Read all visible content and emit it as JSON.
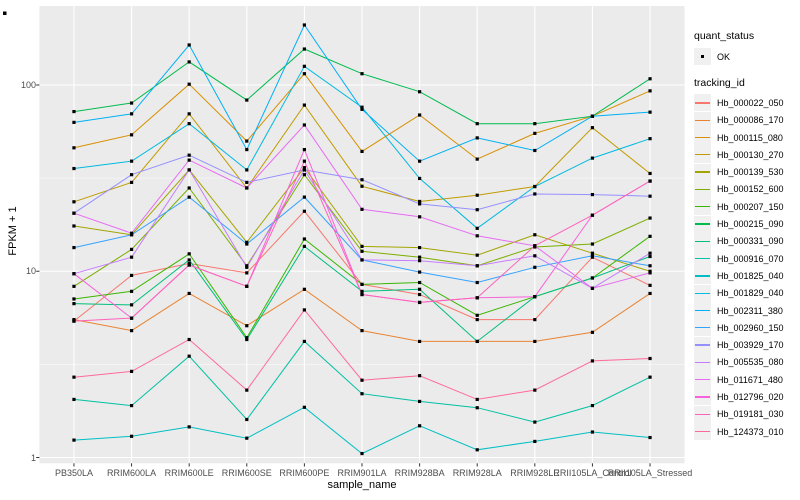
{
  "legend": {
    "quant_status_title": "quant_status",
    "ok_label": "OK",
    "tracking_id_title": "tracking_id"
  },
  "colors": {
    "panel_bg": "#EBEBEB",
    "grid_major": "#FFFFFF",
    "grid_minor": "#F7F7F7",
    "axis_text": "#4D4D4D",
    "tick_mark": "#333333",
    "point": "#000000",
    "legend_key_bg": "#F0F0F0"
  },
  "chart_data": {
    "type": "line",
    "title": "",
    "xlabel": "sample_name",
    "ylabel": "FPKM + 1",
    "yscale": "log10",
    "ylim": [
      0.93,
      265
    ],
    "y_tick_values": [
      1,
      10,
      100
    ],
    "y_tick_labels": [
      "1",
      "10",
      "100"
    ],
    "y_minor_gridlines": [
      3.162,
      31.62
    ],
    "grid": "on",
    "legend_position": "right",
    "point_marker": "black-square",
    "x_categories": [
      "PB350LA",
      "RRIM600LA",
      "RRIM600LE",
      "RRIM600SE",
      "RRIM600PE",
      "RRIM901LA",
      "RRIM928BA",
      "RRIM928LA",
      "RRIM928LE",
      "RRII105LA_Control",
      "RRII105LA_Stressed"
    ],
    "quant_status": "OK",
    "series": [
      {
        "name": "Hb_000022_050",
        "color": "#F8766D",
        "values": [
          5.4,
          9.5,
          11.0,
          9.8,
          21.0,
          8.5,
          7.5,
          5.5,
          5.5,
          11.9,
          8.4
        ]
      },
      {
        "name": "Hb_000086_170",
        "color": "#EA8331",
        "values": [
          5.5,
          4.8,
          7.6,
          5.1,
          8.0,
          4.8,
          4.2,
          4.2,
          4.2,
          4.7,
          7.6
        ]
      },
      {
        "name": "Hb_000115_080",
        "color": "#D89000",
        "values": [
          46,
          54,
          101,
          50,
          115,
          44,
          69,
          40,
          55,
          68,
          93
        ]
      },
      {
        "name": "Hb_000130_270",
        "color": "#C09B00",
        "values": [
          23.6,
          30,
          70,
          28,
          78,
          28.6,
          23.7,
          25.6,
          28.5,
          59,
          33.5
        ]
      },
      {
        "name": "Hb_000139_530",
        "color": "#A3A500",
        "values": [
          17.5,
          15.7,
          35,
          14.3,
          36,
          13.6,
          13.4,
          12.2,
          15.7,
          12.5,
          10
        ]
      },
      {
        "name": "Hb_000152_600",
        "color": "#7CAE00",
        "values": [
          8.3,
          13.1,
          28,
          10.7,
          33,
          12.8,
          11.9,
          10.7,
          13.5,
          14,
          19.3
        ]
      },
      {
        "name": "Hb_000207_150",
        "color": "#39B600",
        "values": [
          7.1,
          7.8,
          12.4,
          4.4,
          14.9,
          8.5,
          8.7,
          5.8,
          7.3,
          9.2,
          15.4
        ]
      },
      {
        "name": "Hb_000215_090",
        "color": "#00BB4E",
        "values": [
          72,
          80,
          133,
          83,
          156,
          115,
          92,
          62,
          62,
          68,
          108
        ]
      },
      {
        "name": "Hb_000331_090",
        "color": "#00BF7D",
        "values": [
          6.7,
          6.6,
          11.5,
          4.3,
          13.6,
          7.8,
          8.0,
          4.2,
          7.3,
          9.2,
          12.0
        ]
      },
      {
        "name": "Hb_000916_070",
        "color": "#00C1A3",
        "values": [
          2.05,
          1.9,
          3.5,
          1.6,
          4.2,
          2.2,
          2.0,
          1.85,
          1.55,
          1.9,
          2.7
        ]
      },
      {
        "name": "Hb_001825_040",
        "color": "#00BFC4",
        "values": [
          1.24,
          1.3,
          1.46,
          1.27,
          1.86,
          1.05,
          1.48,
          1.1,
          1.22,
          1.37,
          1.28
        ]
      },
      {
        "name": "Hb_001829_040",
        "color": "#00BAE0",
        "values": [
          35.6,
          39,
          62,
          35,
          126,
          76,
          31.5,
          17,
          28.5,
          40.5,
          51.5
        ]
      },
      {
        "name": "Hb_002311_380",
        "color": "#00B0F6",
        "values": [
          63,
          70,
          164,
          45,
          210,
          74,
          39,
          52,
          44.5,
          68,
          71.5
        ]
      },
      {
        "name": "Hb_002960_150",
        "color": "#35A2FF",
        "values": [
          13.4,
          15.7,
          25,
          14,
          25,
          11.5,
          9.9,
          8.7,
          10.5,
          12.1,
          10.7
        ]
      },
      {
        "name": "Hb_003929_170",
        "color": "#9590FF",
        "values": [
          20.5,
          33,
          42,
          30,
          35,
          31,
          23,
          21.4,
          26,
          25.8,
          25.3
        ]
      },
      {
        "name": "Hb_005535_080",
        "color": "#C77CFF",
        "values": [
          9.7,
          11.9,
          35,
          10.5,
          35,
          11.5,
          11.4,
          10.7,
          12.1,
          8.1,
          12.5
        ]
      },
      {
        "name": "Hb_011671_480",
        "color": "#E76BF3",
        "values": [
          20.5,
          16,
          39.5,
          28,
          61,
          21.5,
          19.6,
          15.5,
          13.7,
          8.1,
          9.8
        ]
      },
      {
        "name": "Hb_012796_020",
        "color": "#FA62DB",
        "values": [
          9.7,
          5.6,
          10.8,
          8.3,
          45,
          7.5,
          6.8,
          7.2,
          7.3,
          20,
          30.5
        ]
      },
      {
        "name": "Hb_019181_030",
        "color": "#FF62BC",
        "values": [
          5.4,
          5.6,
          10.8,
          8.3,
          39,
          7.5,
          6.8,
          7.2,
          13.7,
          20,
          30.5
        ]
      },
      {
        "name": "Hb_124373_010",
        "color": "#FF6A98",
        "values": [
          2.7,
          2.9,
          4.3,
          2.3,
          6.2,
          2.6,
          2.75,
          2.05,
          2.3,
          3.3,
          3.4
        ]
      }
    ]
  }
}
